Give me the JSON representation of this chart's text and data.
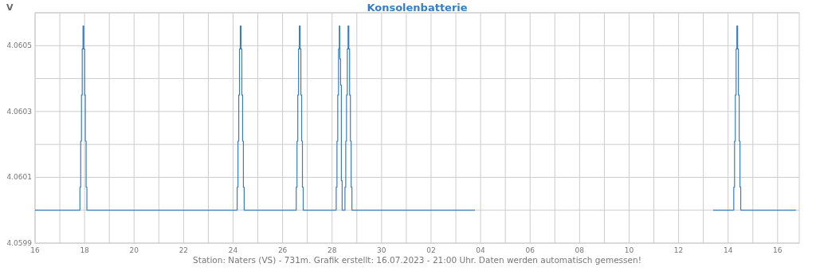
{
  "chart_data": {
    "type": "step",
    "title": "Konsolenbatterie",
    "ylabel": "V",
    "annotations": [
      "Station: Naters (VS) - 731m. Grafik erstellt: 16.07.2023 - 21:00 Uhr. Daten werden automatisch gemessen!"
    ],
    "grid": true,
    "marker": "none",
    "line_style": "solid",
    "xlim": [
      "2023-06-16",
      "2023-07-16T21:00"
    ],
    "xticks": [
      {
        "value": "2023-06-16",
        "label": "16"
      },
      {
        "value": "2023-06-17",
        "label": null
      },
      {
        "value": "2023-06-18",
        "label": "18"
      },
      {
        "value": "2023-06-19",
        "label": null
      },
      {
        "value": "2023-06-20",
        "label": "20"
      },
      {
        "value": "2023-06-21",
        "label": null
      },
      {
        "value": "2023-06-22",
        "label": "22"
      },
      {
        "value": "2023-06-23",
        "label": null
      },
      {
        "value": "2023-06-24",
        "label": "24"
      },
      {
        "value": "2023-06-25",
        "label": null
      },
      {
        "value": "2023-06-26",
        "label": "26"
      },
      {
        "value": "2023-06-27",
        "label": null
      },
      {
        "value": "2023-06-28",
        "label": "28"
      },
      {
        "value": "2023-06-29",
        "label": null
      },
      {
        "value": "2023-06-30",
        "label": "30"
      },
      {
        "value": "2023-07-01",
        "label": null
      },
      {
        "value": "2023-07-02",
        "label": "02"
      },
      {
        "value": "2023-07-03",
        "label": null
      },
      {
        "value": "2023-07-04",
        "label": "04"
      },
      {
        "value": "2023-07-05",
        "label": null
      },
      {
        "value": "2023-07-06",
        "label": "06"
      },
      {
        "value": "2023-07-07",
        "label": null
      },
      {
        "value": "2023-07-08",
        "label": "08"
      },
      {
        "value": "2023-07-09",
        "label": null
      },
      {
        "value": "2023-07-10",
        "label": "10"
      },
      {
        "value": "2023-07-11",
        "label": null
      },
      {
        "value": "2023-07-12",
        "label": "12"
      },
      {
        "value": "2023-07-13",
        "label": null
      },
      {
        "value": "2023-07-14",
        "label": "14"
      },
      {
        "value": "2023-07-15",
        "label": null
      },
      {
        "value": "2023-07-16",
        "label": "16"
      }
    ],
    "ylim": [
      4.0599,
      4.0606
    ],
    "yticks": [
      4.0599,
      {
        "value": 4.06,
        "label": null
      },
      4.0601,
      {
        "value": 4.0602,
        "label": null
      },
      4.0603,
      {
        "value": 4.0604,
        "label": null
      },
      4.0605,
      {
        "value": 4.0606,
        "label": null
      }
    ],
    "series": [
      {
        "color": "#3a7dbf",
        "x": [
          "2023-06-16T00:00",
          "2023-06-17T19:30",
          "2023-06-17T20:15",
          "2023-06-17T21:00",
          "2023-06-17T21:45",
          "2023-06-17T22:30",
          "2023-06-17T23:15",
          "2023-06-18T00:00",
          "2023-06-18T00:45",
          "2023-06-18T01:30",
          "2023-06-18T02:15",
          "2023-06-24T04:00",
          "2023-06-24T04:45",
          "2023-06-24T05:30",
          "2023-06-24T06:15",
          "2023-06-24T07:00",
          "2023-06-24T07:45",
          "2023-06-24T08:30",
          "2023-06-24T09:15",
          "2023-06-24T10:00",
          "2023-06-24T10:45",
          "2023-06-26T13:15",
          "2023-06-26T14:00",
          "2023-06-26T14:45",
          "2023-06-26T15:30",
          "2023-06-26T16:15",
          "2023-06-26T17:00",
          "2023-06-26T17:45",
          "2023-06-26T18:30",
          "2023-06-26T19:15",
          "2023-06-26T20:00",
          "2023-06-28T04:00",
          "2023-06-28T04:45",
          "2023-06-28T05:30",
          "2023-06-28T06:15",
          "2023-06-28T07:00",
          "2023-06-28T07:30",
          "2023-06-28T08:15",
          "2023-06-28T09:00",
          "2023-06-28T09:45",
          "2023-06-28T12:30",
          "2023-06-28T13:15",
          "2023-06-28T14:00",
          "2023-06-28T14:45",
          "2023-06-28T15:30",
          "2023-06-28T16:15",
          "2023-06-28T17:00",
          "2023-06-28T17:45",
          "2023-06-28T18:30",
          "2023-06-28T19:15",
          "2023-07-03T18:30",
          "2023-07-03T19:00",
          "2023-07-13T09:30",
          "2023-07-14T05:30",
          "2023-07-14T06:15",
          "2023-07-14T07:00",
          "2023-07-14T07:45",
          "2023-07-14T08:30",
          "2023-07-14T09:15",
          "2023-07-14T10:00",
          "2023-07-14T10:45",
          "2023-07-14T11:30",
          "2023-07-14T12:15",
          "2023-07-16T17:45"
        ],
        "values": [
          4.06,
          4.06007,
          4.06021,
          4.06035,
          4.06049,
          4.06056,
          4.06049,
          4.06035,
          4.06021,
          4.06007,
          4.06,
          4.06007,
          4.06021,
          4.06035,
          4.06049,
          4.06056,
          4.06049,
          4.06035,
          4.06021,
          4.06007,
          4.06,
          4.06007,
          4.06021,
          4.06035,
          4.06049,
          4.06056,
          4.06049,
          4.06035,
          4.06021,
          4.06007,
          4.06,
          4.06007,
          4.06021,
          4.06035,
          4.06049,
          4.06056,
          4.06046,
          4.06038,
          4.06009,
          4.06,
          4.06007,
          4.06021,
          4.06035,
          4.06049,
          4.06056,
          4.06049,
          4.06035,
          4.06021,
          4.06007,
          4.06,
          4.06,
          null,
          4.06,
          4.06007,
          4.06021,
          4.06035,
          4.06049,
          4.06056,
          4.06049,
          4.06035,
          4.06021,
          4.06007,
          4.06,
          4.06
        ]
      }
    ]
  }
}
